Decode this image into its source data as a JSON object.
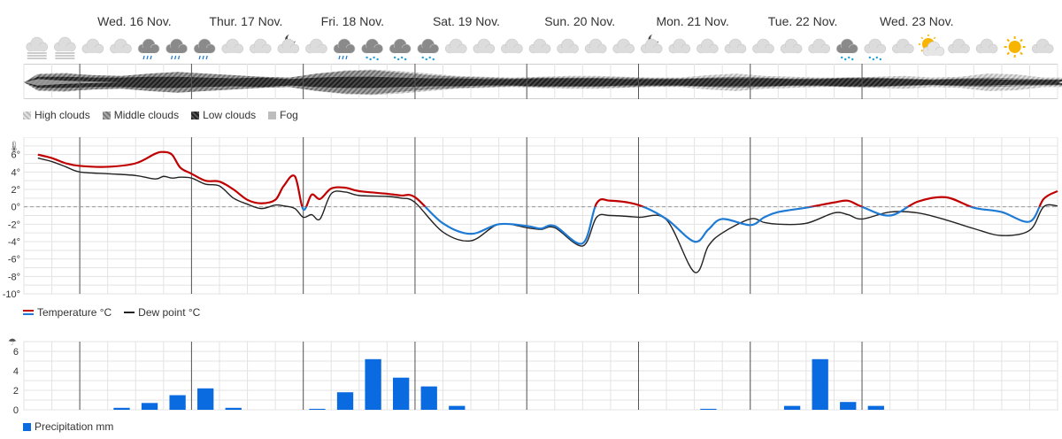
{
  "days": [
    "Wed. 16 Nov.",
    "Thur. 17 Nov.",
    "Fri. 18 Nov.",
    "Sat. 19 Nov.",
    "Sun. 20 Nov.",
    "Mon. 21 Nov.",
    "Tue. 22 Nov.",
    "Wed. 23 Nov."
  ],
  "weather_icons": [
    "fog",
    "fog",
    "cloud",
    "cloud",
    "cloud-rain",
    "cloud-rain-dark",
    "cloud-rain-dark",
    "cloud",
    "cloud",
    "moon-cloud",
    "cloud",
    "cloud-rain",
    "cloud-snow-dark",
    "cloud-snow-dark",
    "cloud-snow-dark",
    "cloud",
    "cloud",
    "cloud",
    "cloud",
    "cloud",
    "cloud",
    "cloud",
    "moon-cloud",
    "cloud",
    "cloud",
    "cloud",
    "cloud",
    "cloud",
    "cloud",
    "cloud-snow-dark",
    "cloud-snow",
    "cloud",
    "sun-cloud",
    "cloud",
    "cloud",
    "sun",
    "cloud"
  ],
  "cloud_legend": {
    "high": "High clouds",
    "middle": "Middle clouds",
    "low": "Low clouds",
    "fog": "Fog"
  },
  "temp_legend": {
    "temperature": "Temperature °C",
    "dewpoint": "Dew point °C"
  },
  "precip_legend": {
    "label": "Precipitation mm"
  },
  "colors": {
    "temp_warm": "#c00000",
    "temp_cold": "#1f7ad4",
    "dewpoint": "#222222",
    "precip": "#0a6ae0",
    "grid": "#e3e3e3",
    "day_line": "#555555"
  },
  "chart_data": [
    {
      "type": "area",
      "name": "cloud cover",
      "x_range": [
        0,
        37
      ],
      "series": [
        {
          "name": "High clouds",
          "values": [
            0.55,
            0.6,
            0.4,
            0.35,
            0.45,
            0.6,
            0.5,
            0.4,
            0.35,
            0.3,
            0.55,
            0.75,
            0.8,
            0.7,
            0.55,
            0.4,
            0.35,
            0.3,
            0.35,
            0.4,
            0.4,
            0.35,
            0.3,
            0.3,
            0.45,
            0.55,
            0.4,
            0.35,
            0.3,
            0.3,
            0.35,
            0.4,
            0.3,
            0.35,
            0.55,
            0.5,
            0.3,
            0.3
          ]
        },
        {
          "name": "Middle clouds",
          "values": [
            0.5,
            0.55,
            0.45,
            0.4,
            0.55,
            0.65,
            0.55,
            0.45,
            0.35,
            0.3,
            0.55,
            0.7,
            0.75,
            0.6,
            0.45,
            0.35,
            0.3,
            0.25,
            0.3,
            0.3,
            0.3,
            0.3,
            0.25,
            0.25,
            0.3,
            0.35,
            0.3,
            0.25,
            0.25,
            0.3,
            0.3,
            0.25,
            0.2,
            0.25,
            0.3,
            0.25,
            0.2,
            0.2
          ]
        },
        {
          "name": "Low clouds",
          "values": [
            0.35,
            0.35,
            0.3,
            0.3,
            0.35,
            0.35,
            0.3,
            0.25,
            0.3,
            0.2,
            0.3,
            0.35,
            0.35,
            0.3,
            0.25,
            0.25,
            0.2,
            0.2,
            0.25,
            0.25,
            0.25,
            0.2,
            0.2,
            0.2,
            0.25,
            0.25,
            0.25,
            0.2,
            0.2,
            0.25,
            0.25,
            0.2,
            0.15,
            0.2,
            0.2,
            0.15,
            0.15,
            0.15
          ]
        },
        {
          "name": "Fog",
          "values": [
            0.2,
            0.1,
            0.05,
            0.0,
            0.0,
            0.0,
            0.0,
            0.0,
            0.0,
            0.0,
            0.0,
            0.0,
            0.0,
            0.0,
            0.0,
            0.0,
            0.0,
            0.0,
            0.0,
            0.0,
            0.0,
            0.0,
            0.0,
            0.0,
            0.0,
            0.0,
            0.0,
            0.0,
            0.0,
            0.0,
            0.0,
            0.0,
            0.0,
            0.0,
            0.0,
            0.0,
            0.0,
            0.0
          ]
        }
      ]
    },
    {
      "type": "line",
      "x_range": [
        0,
        37
      ],
      "ylim": [
        -10,
        8
      ],
      "yticks": [
        -10,
        -8,
        -6,
        -4,
        -2,
        0,
        2,
        4,
        6
      ],
      "tick_labels": [
        "-10°",
        "-8°",
        "-6°",
        "-4°",
        "-2°",
        "0°",
        "2°",
        "4°",
        "6°"
      ],
      "series": [
        {
          "name": "Temperature °C",
          "x": [
            0.5,
            1,
            1.5,
            2,
            3,
            4,
            4.7,
            5,
            5.3,
            5.6,
            6,
            6.5,
            7,
            7.5,
            8,
            8.5,
            9,
            9.3,
            9.7,
            10,
            10.3,
            10.6,
            11,
            11.5,
            12,
            13,
            13.5,
            14,
            15,
            16,
            17,
            18,
            18.5,
            19,
            20,
            20.5,
            21,
            22,
            23,
            24,
            24.5,
            25,
            26,
            26.5,
            27,
            28,
            29,
            29.5,
            30,
            31,
            32,
            33,
            34,
            35,
            36,
            36.5,
            37
          ],
          "values": [
            6.0,
            5.6,
            5.0,
            4.7,
            4.6,
            5.0,
            6.1,
            6.3,
            6.0,
            4.5,
            3.8,
            3.0,
            2.9,
            2.0,
            0.8,
            0.4,
            0.8,
            2.4,
            3.5,
            -0.3,
            1.4,
            0.9,
            2.1,
            2.2,
            1.8,
            1.5,
            1.3,
            1.1,
            -1.9,
            -3.1,
            -2.0,
            -2.2,
            -2.5,
            -2.2,
            -4.2,
            0.4,
            0.7,
            0.2,
            -1.4,
            -4.0,
            -2.6,
            -1.4,
            -2.1,
            -1.2,
            -0.6,
            -0.1,
            0.5,
            0.7,
            0.0,
            -1.0,
            0.6,
            1.1,
            -0.1,
            -0.6,
            -1.7,
            0.9,
            1.8
          ]
        },
        {
          "name": "Dew point °C",
          "x": [
            0.5,
            1,
            1.5,
            2,
            3,
            4,
            4.7,
            5,
            5.3,
            5.6,
            6,
            6.5,
            7,
            7.5,
            8,
            8.5,
            9,
            9.3,
            9.7,
            10,
            10.3,
            10.6,
            11,
            11.5,
            12,
            13,
            13.5,
            14,
            15,
            16,
            17,
            18,
            18.5,
            19,
            20,
            20.5,
            21,
            22,
            23,
            24,
            24.5,
            25,
            26,
            26.5,
            27,
            28,
            29,
            29.5,
            30,
            31,
            32,
            33,
            34,
            35,
            36,
            36.5,
            37
          ],
          "values": [
            5.6,
            5.2,
            4.6,
            4.0,
            3.8,
            3.6,
            3.2,
            3.5,
            3.3,
            3.4,
            3.3,
            2.6,
            2.4,
            1.0,
            0.3,
            -0.2,
            0.2,
            0.1,
            -0.2,
            -1.2,
            -0.9,
            -1.4,
            1.5,
            1.7,
            1.3,
            1.2,
            1.0,
            0.5,
            -2.9,
            -3.9,
            -2.0,
            -2.4,
            -2.6,
            -2.4,
            -4.5,
            -1.2,
            -1.0,
            -1.2,
            -1.5,
            -7.5,
            -4.5,
            -3.0,
            -1.4,
            -1.8,
            -2.0,
            -1.9,
            -0.7,
            -0.9,
            -1.4,
            -0.6,
            -0.7,
            -1.5,
            -2.5,
            -3.3,
            -2.7,
            0.0,
            0.1
          ]
        }
      ]
    },
    {
      "type": "bar",
      "x_range": [
        0,
        37
      ],
      "ylim": [
        0,
        7
      ],
      "yticks": [
        0,
        2,
        4,
        6
      ],
      "tick_labels": [
        "0",
        "2",
        "4",
        "6"
      ],
      "series": [
        {
          "name": "Precipitation mm",
          "x": [
            3.5,
            4.5,
            5.5,
            6.5,
            7.5,
            10.5,
            11.5,
            12.5,
            13.5,
            14.5,
            15.5,
            24.5,
            27.5,
            28.5,
            29.5,
            30.5
          ],
          "values": [
            0.2,
            0.7,
            1.5,
            2.2,
            0.2,
            0.1,
            1.8,
            5.2,
            3.3,
            2.4,
            0.4,
            0.1,
            0.4,
            5.2,
            0.8,
            0.4
          ]
        }
      ]
    }
  ]
}
